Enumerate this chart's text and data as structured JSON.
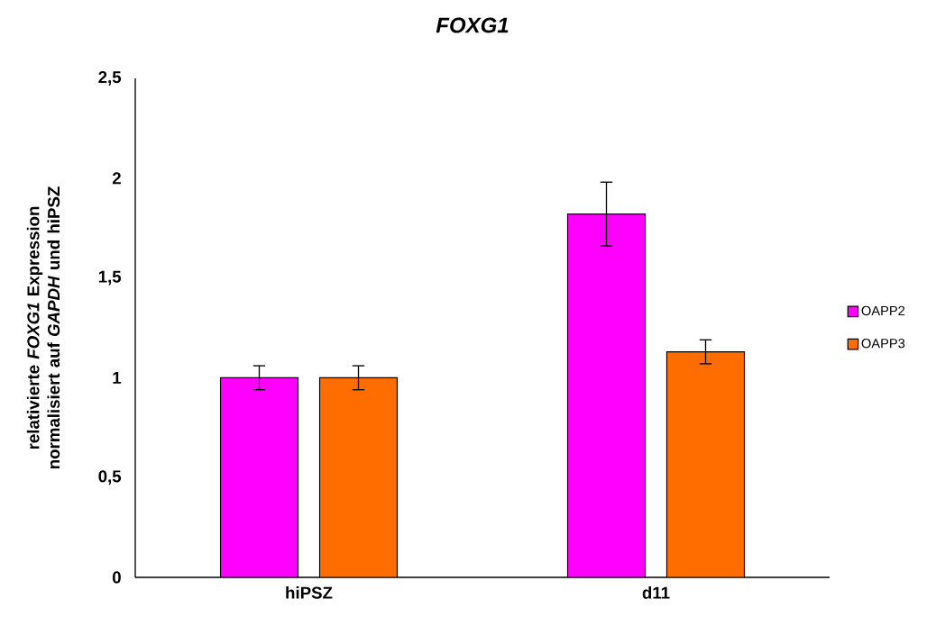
{
  "chart_data": {
    "type": "bar",
    "title": "FOXG1",
    "ylabel": "relativierte *FOXG1*  Expression normalisiert auf *GAPDH* und hiPSZ",
    "categories": [
      "hiPSZ",
      "d11"
    ],
    "series": [
      {
        "name": "OAPP2",
        "color": "#ff00ff",
        "values": [
          1.0,
          1.82
        ],
        "errors": [
          0.06,
          0.16
        ]
      },
      {
        "name": "OAPP3",
        "color": "#ff6d00",
        "values": [
          1.0,
          1.13
        ],
        "errors": [
          0.06,
          0.06
        ]
      }
    ],
    "ylim": [
      0,
      2.5
    ],
    "yticks": [
      0,
      {
        "value": 0.5,
        "label": "0,5"
      },
      1,
      {
        "value": 1.5,
        "label": "1,5"
      },
      2,
      {
        "value": 2.5,
        "label": "2,5"
      }
    ],
    "grid": false,
    "legend": "right"
  }
}
